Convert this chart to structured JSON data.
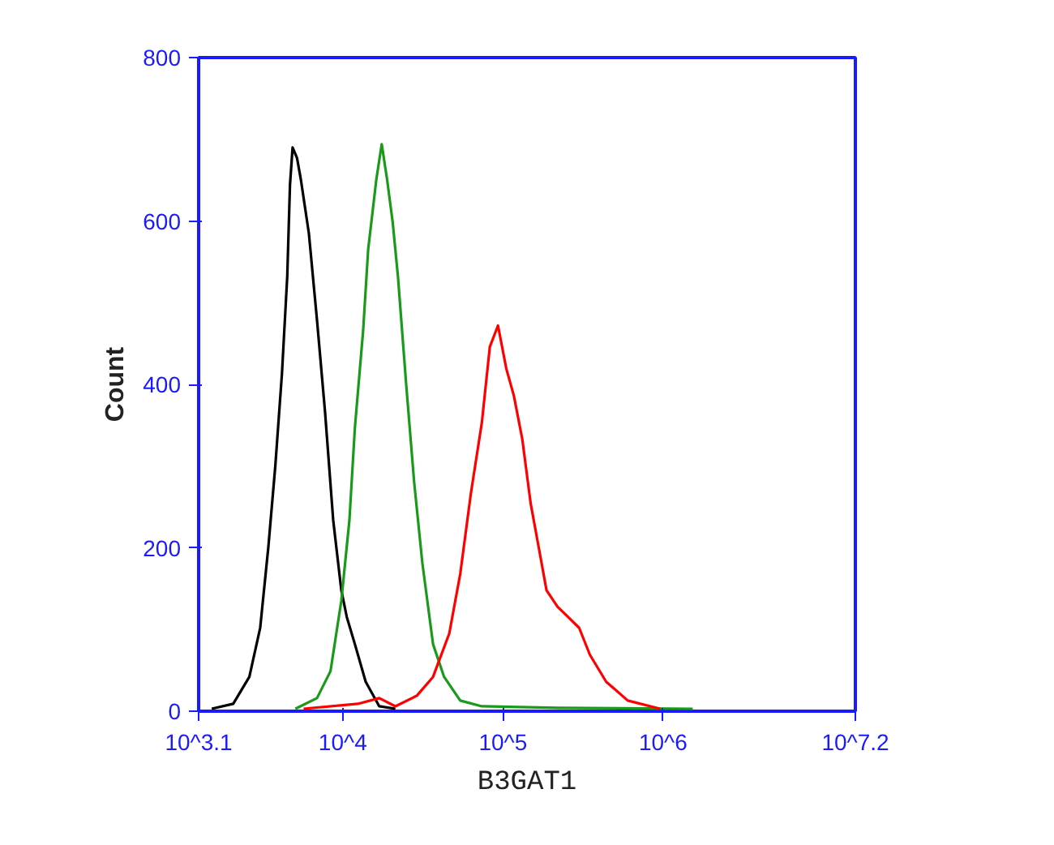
{
  "chart_data": {
    "type": "line",
    "xlabel": "B3GAT1",
    "ylabel": "Count",
    "log": "x",
    "xlim": [
      1259,
      15849000
    ],
    "xticks": [
      {
        "value": 1259,
        "label": "10^3.1"
      },
      {
        "value": 10000,
        "label": "10^4"
      },
      {
        "value": 100000,
        "label": "10^5"
      },
      {
        "value": 1000000,
        "label": "10^6"
      },
      {
        "value": 15849000,
        "label": "10^7.2"
      }
    ],
    "ylim": [
      0,
      800
    ],
    "yticks": [
      0,
      200,
      400,
      600,
      800
    ],
    "line_style": "solid",
    "series": [
      {
        "color": "#000000",
        "x": [
          1520,
          2070,
          2610,
          3050,
          3430,
          3790,
          4170,
          4500,
          4680,
          4860,
          5180,
          5470,
          6140,
          6900,
          7750,
          8710,
          9790,
          10600,
          11900,
          13900,
          16900,
          21300
        ],
        "values": [
          3,
          9,
          42,
          102,
          201,
          300,
          413,
          532,
          644,
          690,
          677,
          651,
          585,
          479,
          366,
          234,
          148,
          115,
          82,
          36,
          6,
          3
        ]
      },
      {
        "color": "#1a9a1a",
        "x": [
          5060,
          6900,
          8380,
          9790,
          11000,
          11900,
          13400,
          14400,
          16200,
          17500,
          18900,
          20500,
          22100,
          24900,
          27900,
          31400,
          36600,
          42900,
          54100,
          73800,
          219000,
          1530000
        ],
        "values": [
          3,
          16,
          49,
          135,
          234,
          347,
          466,
          565,
          651,
          694,
          651,
          598,
          532,
          399,
          280,
          181,
          82,
          42,
          13,
          6,
          4,
          3
        ]
      },
      {
        "color": "#ff0000",
        "x": [
          5690,
          12400,
          16900,
          21300,
          29000,
          36600,
          46200,
          54100,
          63100,
          73800,
          82800,
          93100,
          105000,
          117000,
          132000,
          149000,
          167000,
          187000,
          219000,
          256000,
          299000,
          349000,
          441000,
          601000,
          957000
        ],
        "values": [
          3,
          9,
          16,
          6,
          19,
          42,
          95,
          168,
          267,
          353,
          446,
          472,
          419,
          386,
          333,
          254,
          201,
          148,
          128,
          115,
          102,
          69,
          36,
          13,
          3
        ]
      }
    ]
  }
}
